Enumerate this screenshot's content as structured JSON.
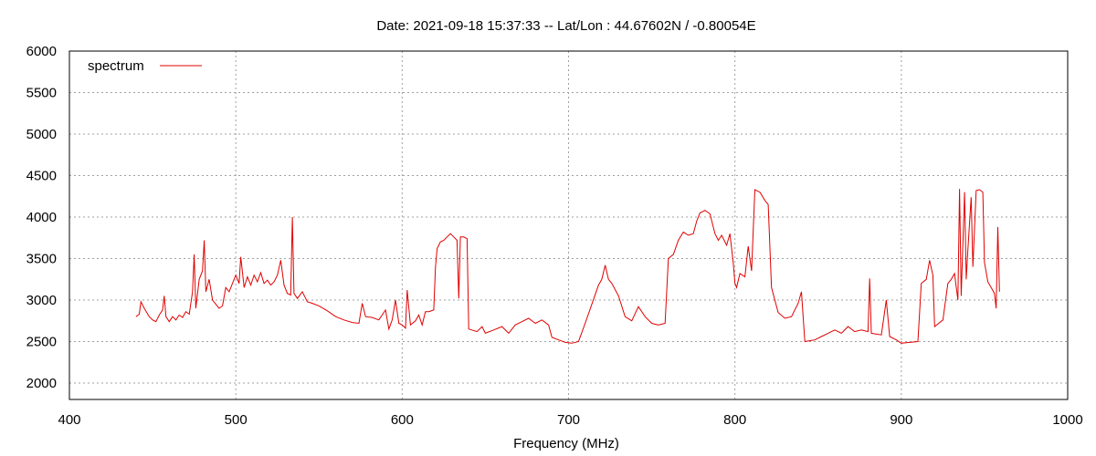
{
  "chart_data": {
    "type": "line",
    "title": "Date: 2021-09-18 15:37:33  --  Lat/Lon : 44.67602N / -0.80054E",
    "xlabel": "Frequency (MHz)",
    "ylabel": "",
    "xlim": [
      400,
      1000
    ],
    "ylim": [
      1800,
      6000
    ],
    "x_ticks": [
      400,
      500,
      600,
      700,
      800,
      900,
      1000
    ],
    "y_ticks": [
      2000,
      2500,
      3000,
      3500,
      4000,
      4500,
      5000,
      5500,
      6000
    ],
    "grid": true,
    "legend_position": "top-left",
    "series": [
      {
        "name": "spectrum",
        "color": "#e00000",
        "points": [
          [
            440,
            2800
          ],
          [
            442,
            2830
          ],
          [
            443,
            2980
          ],
          [
            445,
            2900
          ],
          [
            448,
            2800
          ],
          [
            450,
            2760
          ],
          [
            452,
            2740
          ],
          [
            454,
            2820
          ],
          [
            456,
            2880
          ],
          [
            457,
            3050
          ],
          [
            458,
            2800
          ],
          [
            460,
            2740
          ],
          [
            462,
            2800
          ],
          [
            464,
            2760
          ],
          [
            466,
            2820
          ],
          [
            468,
            2790
          ],
          [
            470,
            2860
          ],
          [
            472,
            2830
          ],
          [
            474,
            3100
          ],
          [
            475,
            3550
          ],
          [
            476,
            2900
          ],
          [
            478,
            3250
          ],
          [
            480,
            3350
          ],
          [
            481,
            3720
          ],
          [
            482,
            3100
          ],
          [
            484,
            3250
          ],
          [
            486,
            3000
          ],
          [
            488,
            2950
          ],
          [
            490,
            2900
          ],
          [
            492,
            2930
          ],
          [
            494,
            3150
          ],
          [
            496,
            3100
          ],
          [
            498,
            3200
          ],
          [
            500,
            3300
          ],
          [
            502,
            3200
          ],
          [
            503,
            3520
          ],
          [
            505,
            3150
          ],
          [
            507,
            3280
          ],
          [
            509,
            3180
          ],
          [
            511,
            3300
          ],
          [
            513,
            3220
          ],
          [
            515,
            3330
          ],
          [
            517,
            3200
          ],
          [
            519,
            3240
          ],
          [
            521,
            3180
          ],
          [
            523,
            3220
          ],
          [
            525,
            3300
          ],
          [
            527,
            3480
          ],
          [
            529,
            3180
          ],
          [
            531,
            3080
          ],
          [
            533,
            3060
          ],
          [
            534,
            4000
          ],
          [
            535,
            3080
          ],
          [
            537,
            3020
          ],
          [
            540,
            3100
          ],
          [
            543,
            2980
          ],
          [
            546,
            2960
          ],
          [
            550,
            2930
          ],
          [
            555,
            2870
          ],
          [
            560,
            2800
          ],
          [
            565,
            2760
          ],
          [
            570,
            2730
          ],
          [
            574,
            2720
          ],
          [
            576,
            2960
          ],
          [
            578,
            2800
          ],
          [
            582,
            2790
          ],
          [
            586,
            2760
          ],
          [
            590,
            2880
          ],
          [
            592,
            2650
          ],
          [
            594,
            2760
          ],
          [
            596,
            3000
          ],
          [
            598,
            2720
          ],
          [
            600,
            2700
          ],
          [
            602,
            2660
          ],
          [
            603,
            3120
          ],
          [
            605,
            2700
          ],
          [
            608,
            2750
          ],
          [
            610,
            2820
          ],
          [
            612,
            2700
          ],
          [
            614,
            2860
          ],
          [
            616,
            2860
          ],
          [
            619,
            2880
          ],
          [
            620,
            3400
          ],
          [
            621,
            3620
          ],
          [
            623,
            3700
          ],
          [
            625,
            3720
          ],
          [
            627,
            3760
          ],
          [
            629,
            3800
          ],
          [
            631,
            3760
          ],
          [
            633,
            3720
          ],
          [
            634,
            3020
          ],
          [
            635,
            3760
          ],
          [
            637,
            3760
          ],
          [
            639,
            3740
          ],
          [
            640,
            2650
          ],
          [
            645,
            2620
          ],
          [
            648,
            2680
          ],
          [
            650,
            2600
          ],
          [
            655,
            2640
          ],
          [
            660,
            2680
          ],
          [
            664,
            2600
          ],
          [
            668,
            2700
          ],
          [
            672,
            2740
          ],
          [
            676,
            2780
          ],
          [
            680,
            2720
          ],
          [
            684,
            2760
          ],
          [
            688,
            2700
          ],
          [
            690,
            2550
          ],
          [
            694,
            2520
          ],
          [
            698,
            2490
          ],
          [
            702,
            2480
          ],
          [
            706,
            2500
          ],
          [
            710,
            2720
          ],
          [
            714,
            2950
          ],
          [
            718,
            3180
          ],
          [
            720,
            3250
          ],
          [
            722,
            3420
          ],
          [
            724,
            3250
          ],
          [
            726,
            3200
          ],
          [
            730,
            3050
          ],
          [
            734,
            2800
          ],
          [
            738,
            2750
          ],
          [
            742,
            2920
          ],
          [
            746,
            2800
          ],
          [
            750,
            2720
          ],
          [
            754,
            2700
          ],
          [
            758,
            2720
          ],
          [
            760,
            3500
          ],
          [
            763,
            3550
          ],
          [
            766,
            3720
          ],
          [
            769,
            3820
          ],
          [
            772,
            3780
          ],
          [
            775,
            3800
          ],
          [
            777,
            3950
          ],
          [
            779,
            4050
          ],
          [
            782,
            4080
          ],
          [
            785,
            4040
          ],
          [
            788,
            3800
          ],
          [
            790,
            3720
          ],
          [
            792,
            3780
          ],
          [
            795,
            3660
          ],
          [
            797,
            3800
          ],
          [
            799,
            3450
          ],
          [
            800,
            3200
          ],
          [
            801,
            3150
          ],
          [
            803,
            3320
          ],
          [
            806,
            3280
          ],
          [
            808,
            3650
          ],
          [
            810,
            3350
          ],
          [
            812,
            4330
          ],
          [
            815,
            4300
          ],
          [
            818,
            4200
          ],
          [
            820,
            4150
          ],
          [
            822,
            3150
          ],
          [
            826,
            2850
          ],
          [
            830,
            2780
          ],
          [
            834,
            2800
          ],
          [
            838,
            2960
          ],
          [
            840,
            3100
          ],
          [
            842,
            2500
          ],
          [
            848,
            2520
          ],
          [
            852,
            2560
          ],
          [
            856,
            2600
          ],
          [
            860,
            2640
          ],
          [
            864,
            2600
          ],
          [
            868,
            2680
          ],
          [
            872,
            2620
          ],
          [
            876,
            2640
          ],
          [
            880,
            2620
          ],
          [
            881,
            3260
          ],
          [
            882,
            2600
          ],
          [
            888,
            2580
          ],
          [
            891,
            3000
          ],
          [
            893,
            2560
          ],
          [
            897,
            2520
          ],
          [
            900,
            2480
          ],
          [
            905,
            2490
          ],
          [
            910,
            2500
          ],
          [
            912,
            3200
          ],
          [
            915,
            3250
          ],
          [
            917,
            3480
          ],
          [
            919,
            3300
          ],
          [
            920,
            2680
          ],
          [
            925,
            2760
          ],
          [
            928,
            3200
          ],
          [
            930,
            3250
          ],
          [
            932,
            3320
          ],
          [
            934,
            3000
          ],
          [
            935,
            4340
          ],
          [
            936,
            3050
          ],
          [
            938,
            4300
          ],
          [
            939,
            3250
          ],
          [
            940,
            3600
          ],
          [
            942,
            4240
          ],
          [
            943,
            3400
          ],
          [
            945,
            4320
          ],
          [
            947,
            4330
          ],
          [
            949,
            4300
          ],
          [
            950,
            3450
          ],
          [
            952,
            3220
          ],
          [
            954,
            3150
          ],
          [
            956,
            3080
          ],
          [
            957,
            2900
          ],
          [
            958,
            3880
          ],
          [
            959,
            3100
          ]
        ]
      }
    ]
  }
}
